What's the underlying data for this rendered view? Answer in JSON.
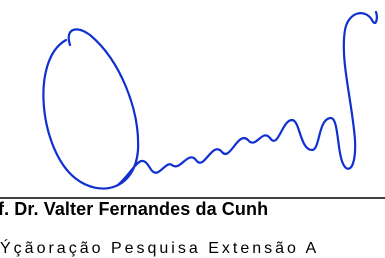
{
  "signature": {
    "name": "f. Dr. Valter Fernandes da Cunh",
    "role": "Ýçãoração Pesquisa Extensão A"
  }
}
